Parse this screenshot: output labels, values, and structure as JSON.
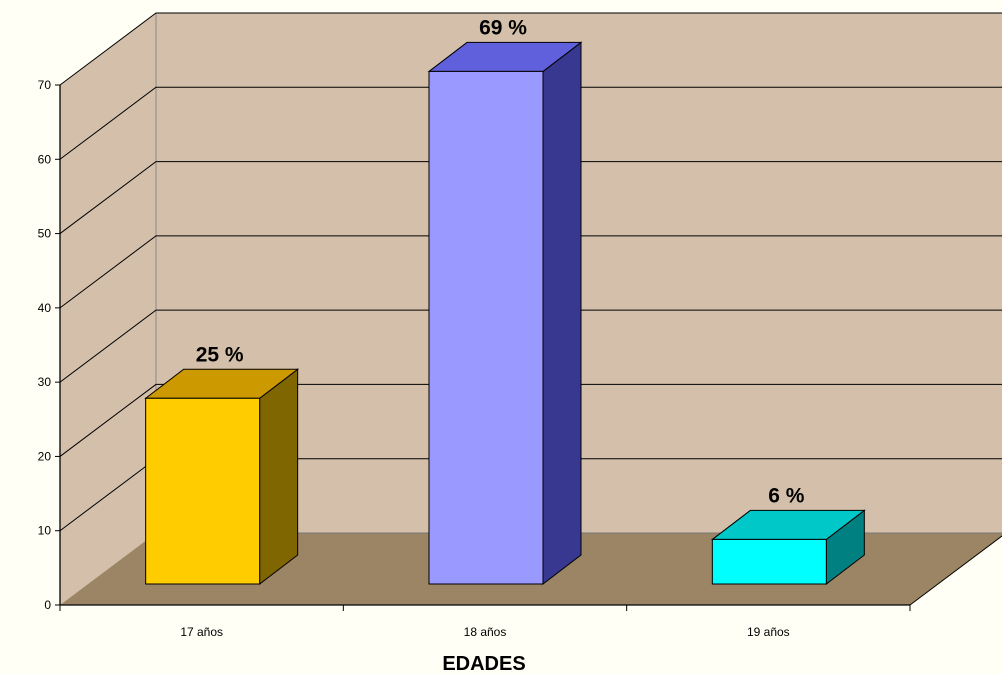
{
  "chart_data": {
    "type": "bar",
    "categories": [
      "17 años",
      "18 años",
      "19 años"
    ],
    "values": [
      25,
      69,
      6
    ],
    "data_labels": [
      "25 %",
      "69 %",
      "6 %"
    ],
    "xlabel": "EDADES",
    "ylabel": "",
    "ylim": [
      0,
      70
    ],
    "yticks": [
      "0",
      "10",
      "20",
      "30",
      "40",
      "50",
      "60",
      "70"
    ],
    "grid": true,
    "legend": "none",
    "three_d": true,
    "colors": {
      "bars": [
        "#ffcc00",
        "#9999ff",
        "#00ffff"
      ],
      "bar_tops": [
        "#cc9900",
        "#6060dd",
        "#00c8c8"
      ],
      "bar_sides": [
        "#806600",
        "#383890",
        "#008080"
      ],
      "back_wall": "#d4c0aa",
      "side_wall": "#d4c0aa",
      "floor": "#9b8564",
      "gridline": "#000000",
      "background": "#fffff5"
    }
  }
}
